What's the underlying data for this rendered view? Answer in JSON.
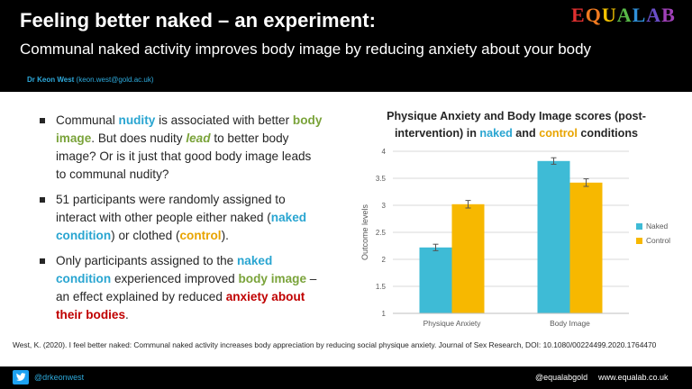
{
  "header": {
    "title": "Feeling better naked – an experiment:",
    "subtitle": "Communal naked activity improves body image by reducing anxiety about your body",
    "author_name": "Dr Keon West",
    "author_email": "(keon.west@gold.ac.uk)",
    "logo_letters": [
      "E",
      "Q",
      "U",
      "A",
      "L",
      "A",
      "B"
    ],
    "logo_colors": [
      "#e03030",
      "#f07a20",
      "#f2c200",
      "#58b848",
      "#2f8fd8",
      "#6a4ec8",
      "#a040b8"
    ]
  },
  "bullets": [
    {
      "parts": [
        {
          "text": "Communal ",
          "style": ""
        },
        {
          "text": "nudity",
          "style": "blue"
        },
        {
          "text": " is associated with better ",
          "style": ""
        },
        {
          "text": "body image",
          "style": "green"
        },
        {
          "text": ". But does nudity ",
          "style": ""
        },
        {
          "text": "lead",
          "style": "green-italic"
        },
        {
          "text": " to better body image? Or is it just that good body image leads to communal nudity?",
          "style": ""
        }
      ]
    },
    {
      "parts": [
        {
          "text": "51 participants were randomly assigned to interact with other people either naked (",
          "style": ""
        },
        {
          "text": "naked condition",
          "style": "blue"
        },
        {
          "text": ") or clothed (",
          "style": ""
        },
        {
          "text": "control",
          "style": "gold"
        },
        {
          "text": ").",
          "style": ""
        }
      ]
    },
    {
      "parts": [
        {
          "text": "Only participants assigned to the ",
          "style": ""
        },
        {
          "text": "naked condition",
          "style": "blue"
        },
        {
          "text": " experienced improved ",
          "style": ""
        },
        {
          "text": "body image",
          "style": "green"
        },
        {
          "text": " – an effect explained by reduced ",
          "style": ""
        },
        {
          "text": "anxiety about their bodies",
          "style": "red"
        },
        {
          "text": ".",
          "style": ""
        }
      ]
    }
  ],
  "chart_data": {
    "type": "bar",
    "title_parts": [
      {
        "text": "Physique Anxiety and Body Image scores (post-intervention) in ",
        "style": ""
      },
      {
        "text": "naked",
        "style": "blue"
      },
      {
        "text": " and ",
        "style": ""
      },
      {
        "text": "control",
        "style": "gold"
      },
      {
        "text": " conditions",
        "style": ""
      }
    ],
    "categories": [
      "Physique Anxiety",
      "Body Image"
    ],
    "series": [
      {
        "name": "Naked",
        "color": "#3ebbd6",
        "values": [
          2.22,
          3.82
        ],
        "errors": [
          0.06,
          0.06
        ]
      },
      {
        "name": "Control",
        "color": "#f7b800",
        "values": [
          3.02,
          3.42
        ],
        "errors": [
          0.07,
          0.07
        ]
      }
    ],
    "ylabel": "Outcome levels",
    "ylim": [
      1,
      4
    ],
    "yticks": [
      "1",
      "1.5",
      "2",
      "2.5",
      "3",
      "3.5",
      "4"
    ],
    "grid": true,
    "legend_position": "right"
  },
  "reference": "West, K. (2020). I feel better naked: Communal naked activity increases body appreciation by reducing social physique anxiety. Journal of Sex Research, DOI: 10.1080/00224499.2020.1764470",
  "footer": {
    "twitter_handle": "@drkeonwest",
    "handle": "@equalabgold",
    "website": "www.equalab.co.uk"
  }
}
